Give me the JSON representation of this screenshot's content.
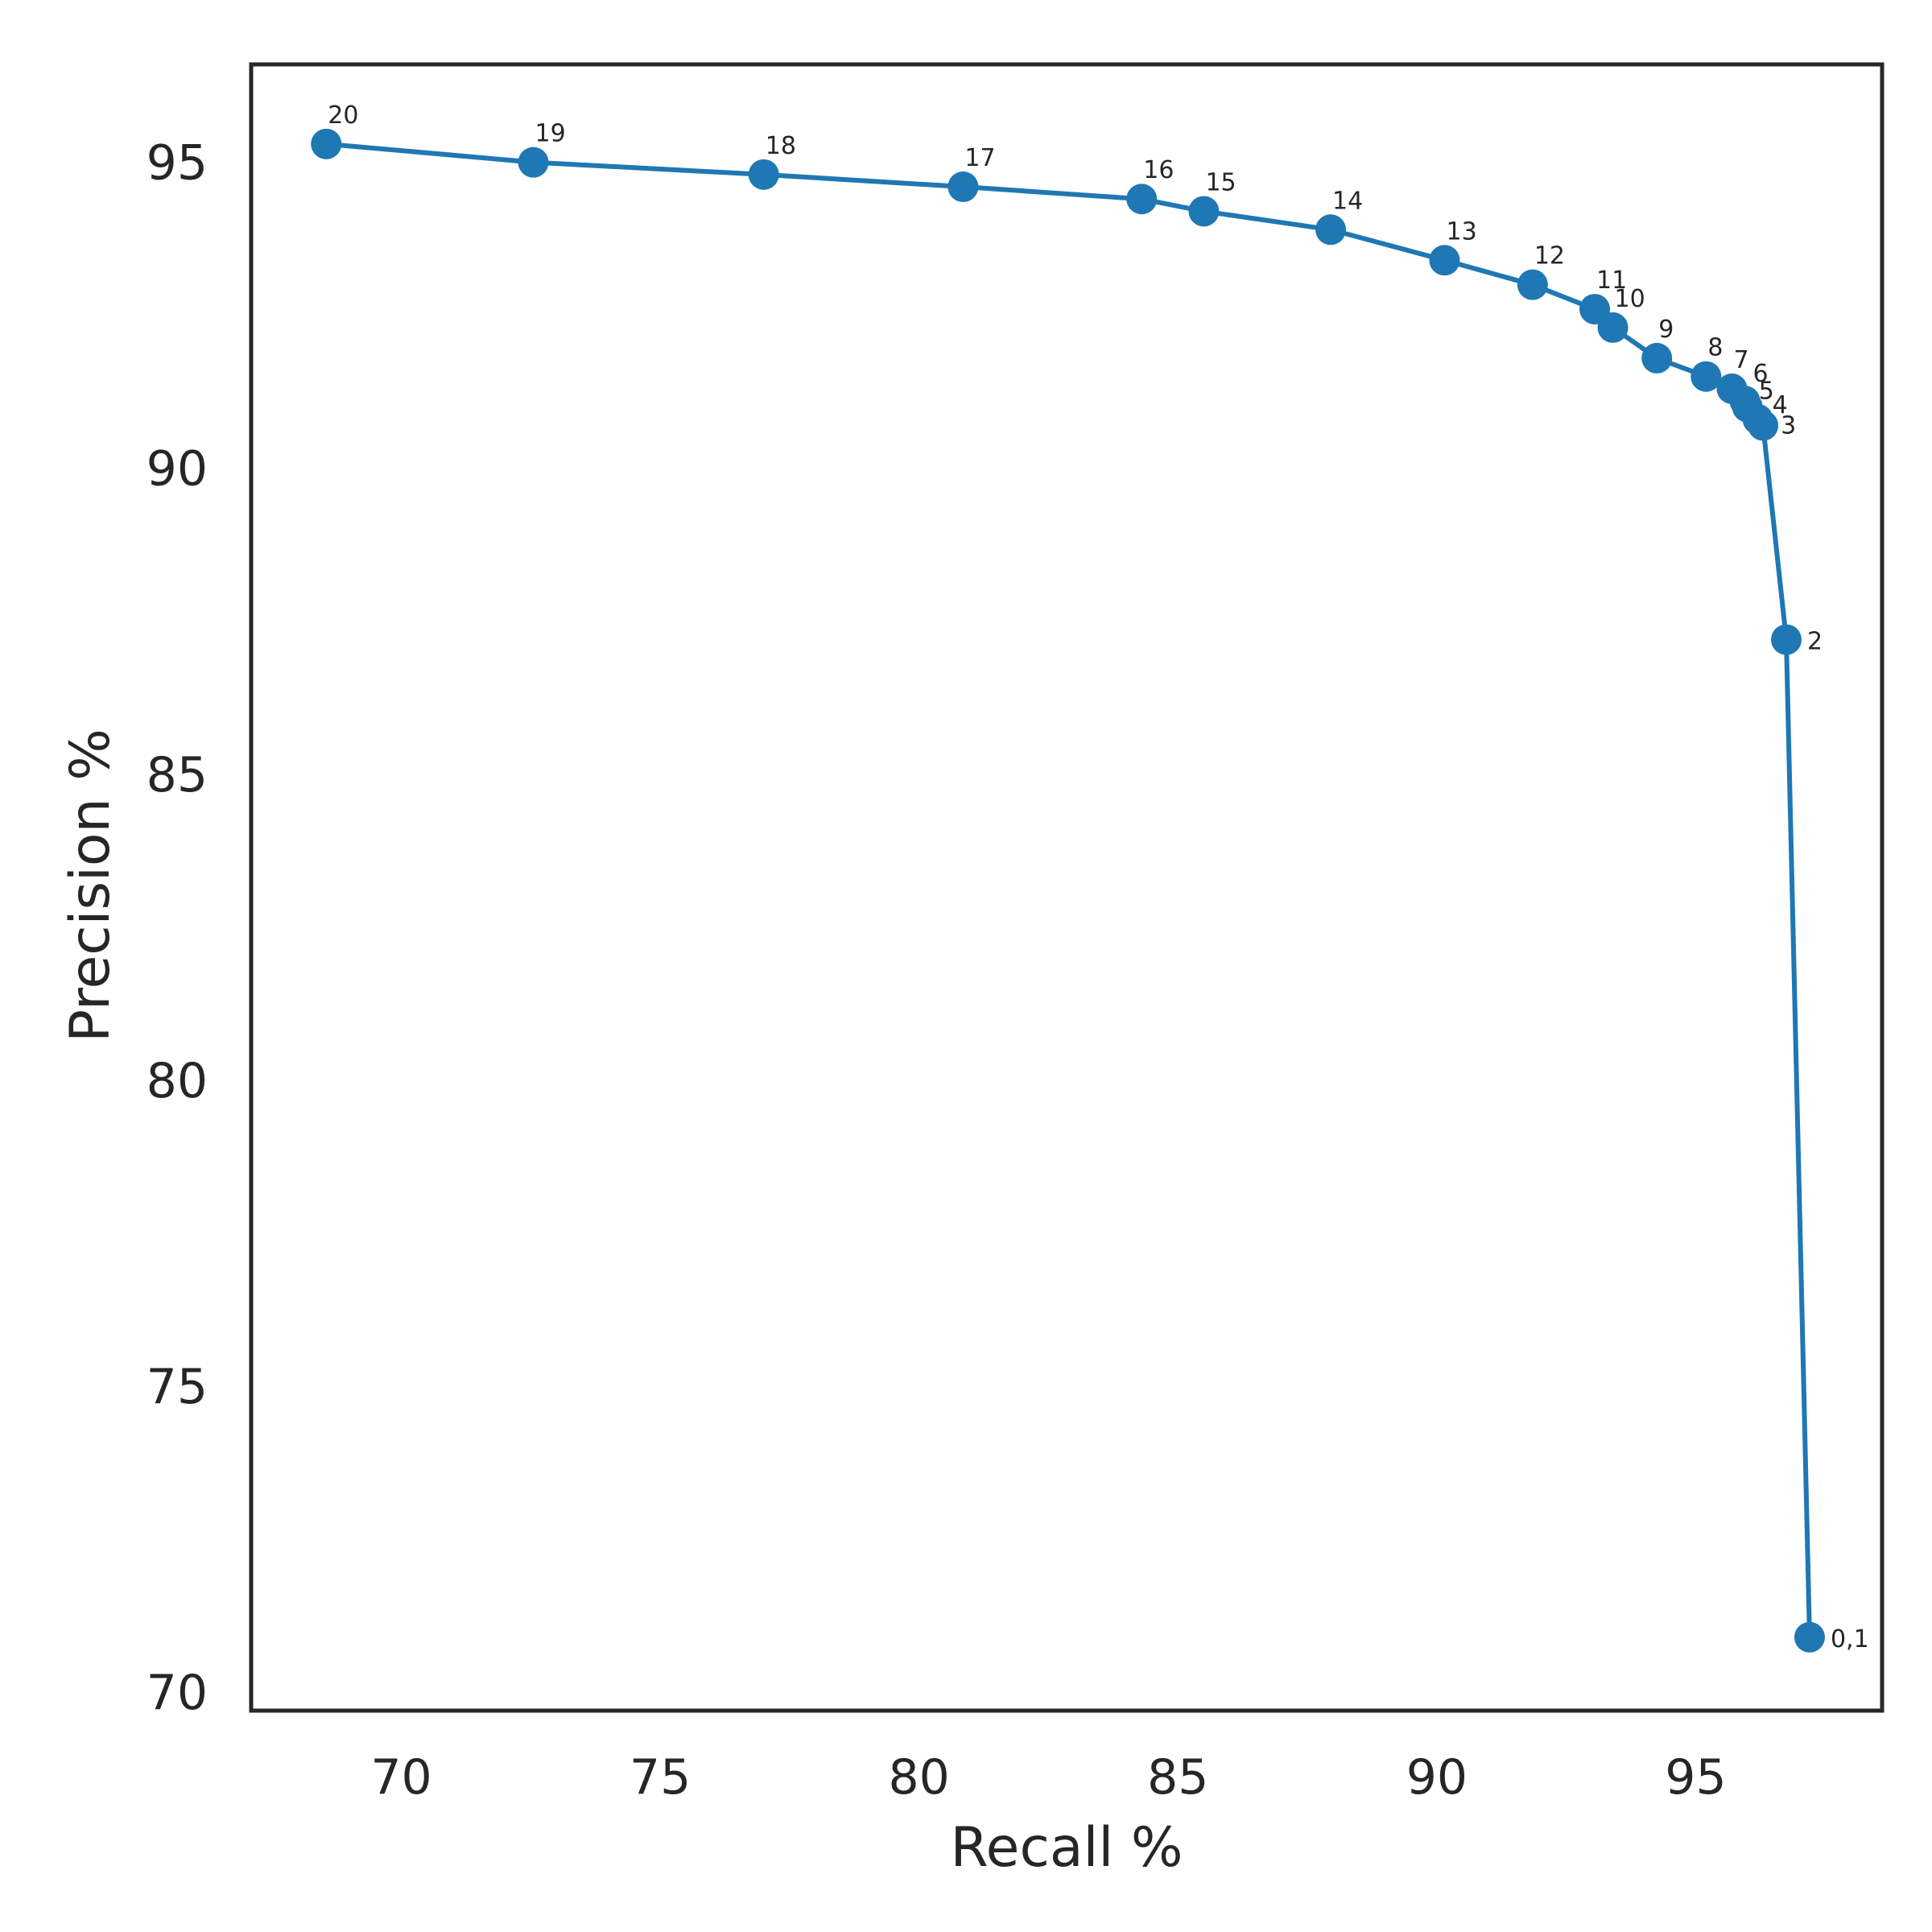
{
  "chart_data": {
    "type": "line",
    "title": "",
    "xlabel": "Recall %",
    "ylabel": "Precision %",
    "xlim": [
      67.1,
      98.6
    ],
    "ylim": [
      69.7,
      96.6
    ],
    "xticks": [
      70,
      75,
      80,
      85,
      90,
      95
    ],
    "yticks": [
      70,
      75,
      80,
      85,
      90,
      95
    ],
    "xtick_labels": [
      "70",
      "75",
      "80",
      "85",
      "90",
      "95"
    ],
    "ytick_labels": [
      "70",
      "75",
      "80",
      "85",
      "90",
      "95"
    ],
    "grid": false,
    "legend": "none",
    "series": [
      {
        "color": "#1f77b4",
        "marker": "circle",
        "points": [
          {
            "label": "0,1",
            "x": 97.2,
            "y": 70.9
          },
          {
            "label": "2",
            "x": 96.75,
            "y": 87.2
          },
          {
            "label": "3",
            "x": 96.3,
            "y": 90.7
          },
          {
            "label": "4",
            "x": 96.2,
            "y": 90.8
          },
          {
            "label": "5",
            "x": 96.0,
            "y": 91.0
          },
          {
            "label": "6",
            "x": 95.95,
            "y": 91.1
          },
          {
            "label": "7",
            "x": 95.7,
            "y": 91.3
          },
          {
            "label": "8",
            "x": 95.2,
            "y": 91.5
          },
          {
            "label": "9",
            "x": 94.25,
            "y": 91.8
          },
          {
            "label": "10",
            "x": 93.4,
            "y": 92.3
          },
          {
            "label": "11",
            "x": 93.05,
            "y": 92.6
          },
          {
            "label": "12",
            "x": 91.85,
            "y": 93.0
          },
          {
            "label": "13",
            "x": 90.15,
            "y": 93.4
          },
          {
            "label": "14",
            "x": 87.95,
            "y": 93.9
          },
          {
            "label": "15",
            "x": 85.5,
            "y": 94.2
          },
          {
            "label": "16",
            "x": 84.3,
            "y": 94.4
          },
          {
            "label": "17",
            "x": 80.85,
            "y": 94.6
          },
          {
            "label": "18",
            "x": 77.0,
            "y": 94.8
          },
          {
            "label": "19",
            "x": 72.55,
            "y": 95.0
          },
          {
            "label": "20",
            "x": 68.55,
            "y": 95.3
          }
        ]
      }
    ]
  }
}
